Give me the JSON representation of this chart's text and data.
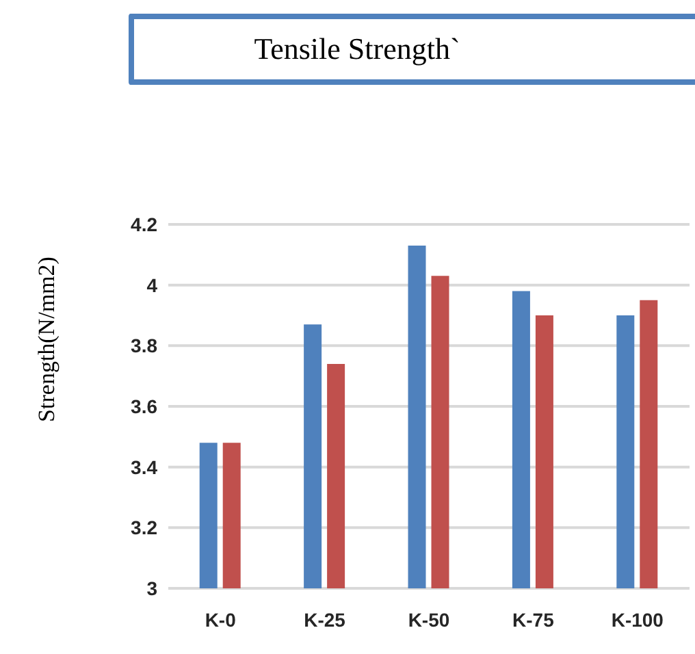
{
  "chart_data": {
    "type": "bar",
    "title": "Tensile Strength`",
    "ylabel": "Strength(N/mm2)",
    "categories": [
      "K-0",
      "K-25",
      "K-50",
      "K-75",
      "K-100"
    ],
    "series": [
      {
        "color": "#4f81bd",
        "values": [
          3.48,
          3.87,
          4.13,
          3.98,
          3.9
        ]
      },
      {
        "color": "#c0504d",
        "values": [
          3.48,
          3.74,
          4.03,
          3.9,
          3.95
        ]
      }
    ],
    "ylim": [
      3,
      4.2
    ],
    "yticks": [
      3,
      3.2,
      3.4,
      3.6,
      3.8,
      4,
      4.2
    ],
    "grid": "y",
    "legend": false
  }
}
